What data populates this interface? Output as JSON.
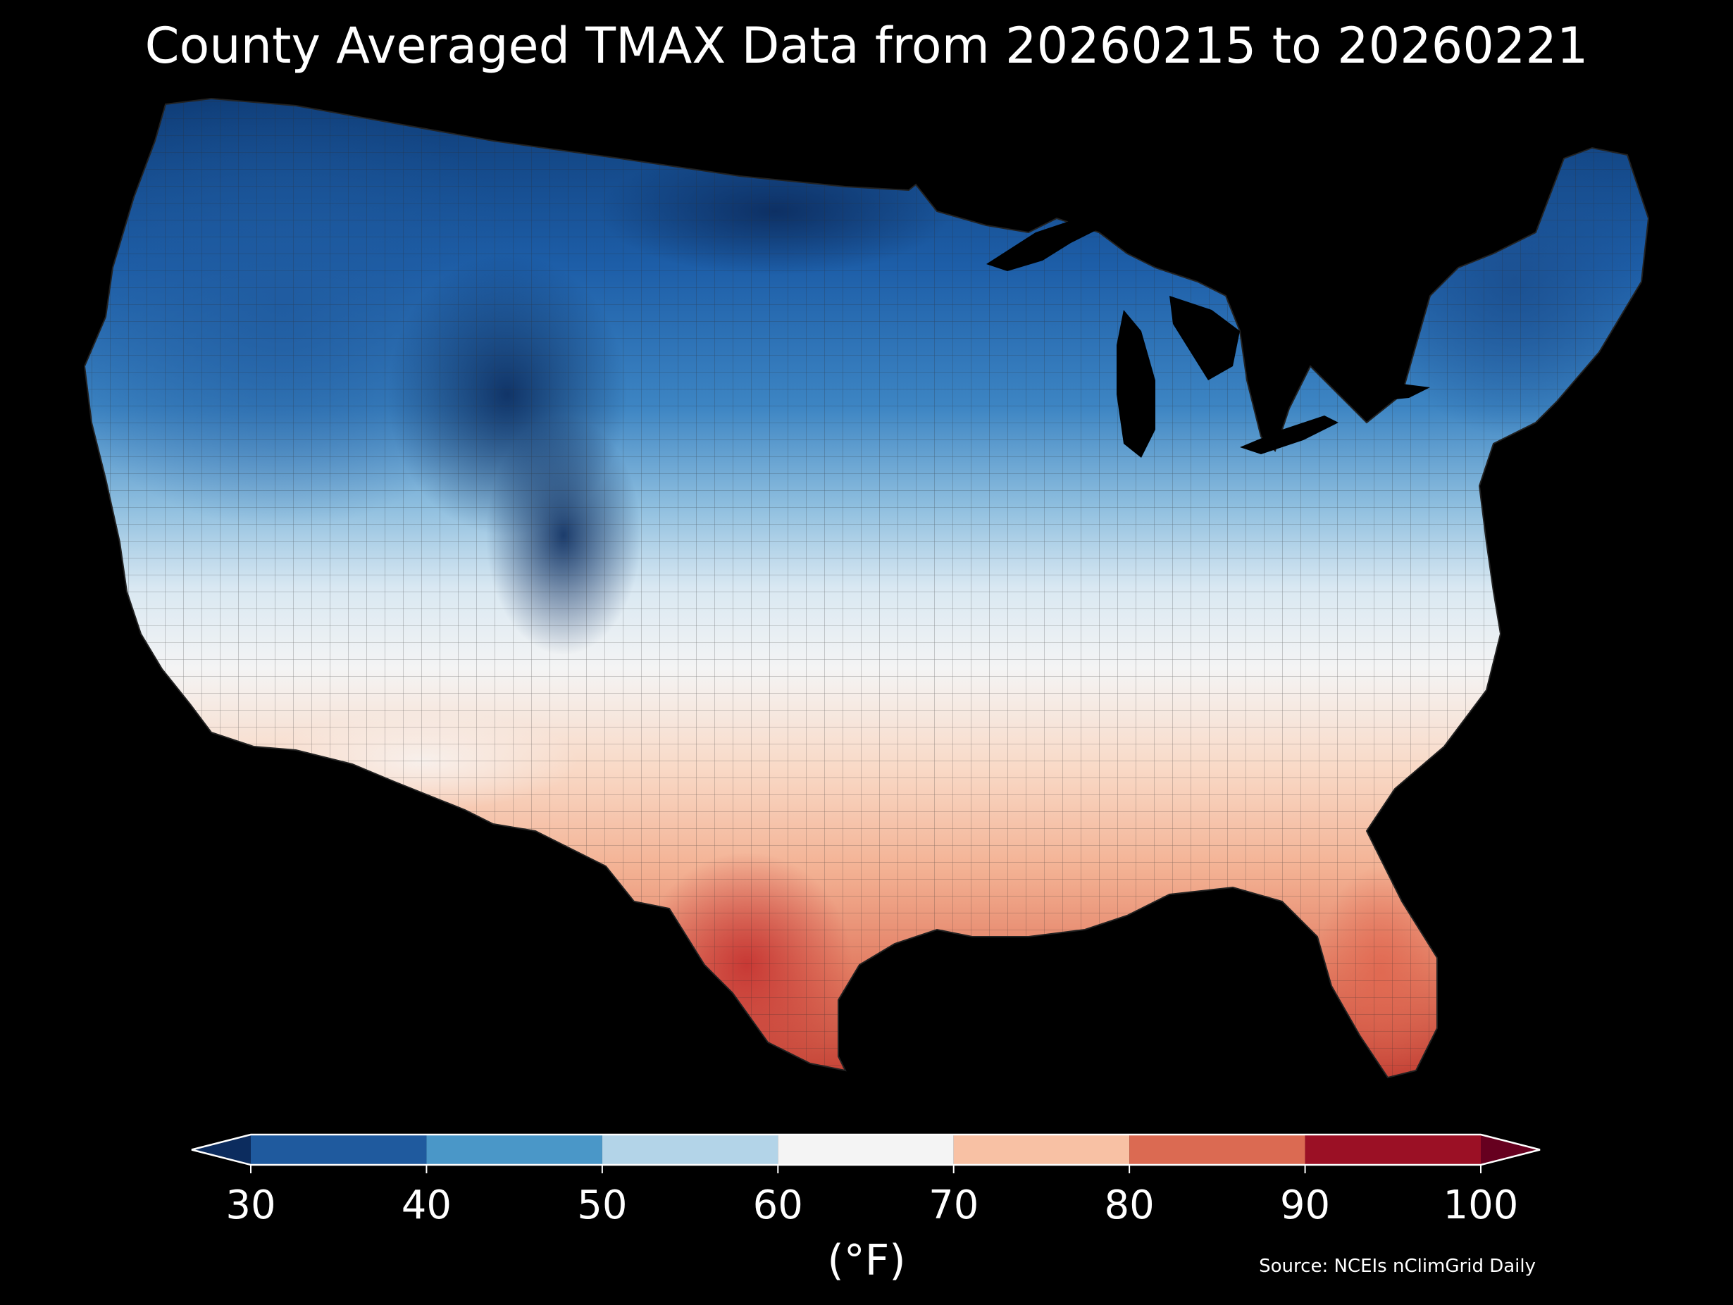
{
  "title": "County Averaged TMAX Data from 20260215 to 20260221",
  "colorbar": {
    "units": "(°F)",
    "ticks": [
      "30",
      "40",
      "50",
      "60",
      "70",
      "80",
      "90",
      "100"
    ],
    "bins": [
      {
        "min": 30,
        "max": 40,
        "color": "#1f5a9e"
      },
      {
        "min": 40,
        "max": 50,
        "color": "#4a97c8"
      },
      {
        "min": 50,
        "max": 60,
        "color": "#b3d4e8"
      },
      {
        "min": 60,
        "max": 70,
        "color": "#f4f4f4"
      },
      {
        "min": 70,
        "max": 80,
        "color": "#f8c1a4"
      },
      {
        "min": 80,
        "max": 90,
        "color": "#db6a52"
      },
      {
        "min": 90,
        "max": 100,
        "color": "#9b1025"
      }
    ],
    "under_color": "#0c2c5e",
    "over_color": "#66001f"
  },
  "source": "Source: NCEIs nClimGrid Daily",
  "map": {
    "region": "Contiguous United States",
    "variable": "TMAX",
    "aggregation": "county average",
    "background_color": "#000000"
  }
}
